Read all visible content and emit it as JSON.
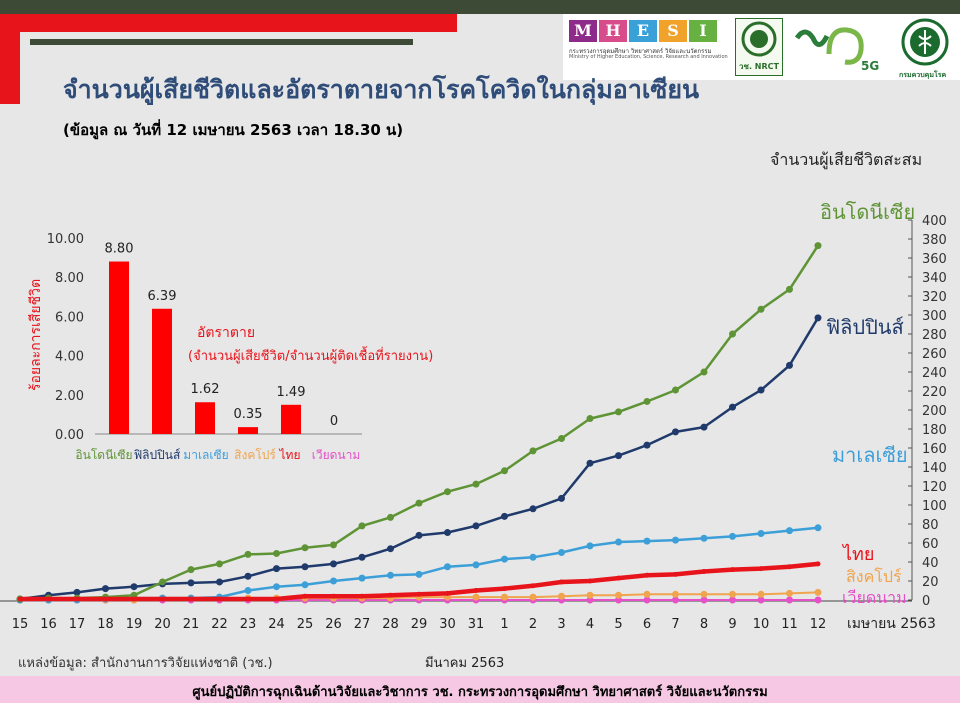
{
  "header": {
    "title": "จำนวนผู้เสียชีวิตและอัตราตายจากโรคโควิดในกลุ่มอาเซียน",
    "subtitle": "(ข้อมูล ณ วันที่ 12 เมษายน 2563 เวลา 18.30 น)",
    "logos": {
      "mhesi_letters": [
        "M",
        "H",
        "E",
        "S",
        "I"
      ],
      "mhesi_colors": [
        "#8e2a8a",
        "#d94c8c",
        "#3aa0d8",
        "#f0a22a",
        "#67b042"
      ],
      "mhesi_th": "กระทรวงการอุดมศึกษา วิทยาศาสตร์ วิจัยและนวัตกรรม",
      "mhesi_en": "Ministry of Higher Education, Science, Research and Innovation",
      "nrct_label": "วช. NRCT",
      "v5g_mark": "5G",
      "moph_label": "กรมควบคุมโรค"
    }
  },
  "source_text": "แหล่งข้อมูล: สำนักงานการวิจัยแห่งชาติ (วช.)",
  "month_label": "มีนาคม 2563",
  "footer_text": "ศูนย์ปฏิบัติการฉุกเฉินด้านวิจัยและวิชาการ   วช.   กระทรวงการอุดมศึกษา วิทยาศาสตร์ วิจัยและนวัตกรรม",
  "chart_data": [
    {
      "type": "line",
      "ylabel": "จำนวนผู้เสียชีวิตสะสม",
      "ylim": [
        0,
        400
      ],
      "yticks": [
        0,
        20,
        40,
        60,
        80,
        100,
        120,
        140,
        160,
        180,
        200,
        220,
        240,
        260,
        280,
        300,
        320,
        340,
        360,
        380,
        400
      ],
      "y_axis_side": "right",
      "x": [
        "15",
        "16",
        "17",
        "18",
        "19",
        "20",
        "21",
        "22",
        "23",
        "24",
        "25",
        "26",
        "27",
        "28",
        "29",
        "30",
        "31",
        "1",
        "2",
        "3",
        "4",
        "5",
        "6",
        "7",
        "8",
        "9",
        "10",
        "11",
        "12"
      ],
      "x_month_end": "เมษายน 2563",
      "series": [
        {
          "name": "อินโดนีเซีย",
          "color": "#5e9436",
          "values": [
            1,
            2,
            2,
            3,
            5,
            19,
            32,
            38,
            48,
            49,
            55,
            58,
            78,
            87,
            102,
            114,
            122,
            136,
            157,
            170,
            191,
            198,
            209,
            221,
            240,
            280,
            306,
            327,
            373
          ]
        },
        {
          "name": "ฟิลิปปินส์",
          "color": "#1f3a6b",
          "values": [
            1,
            5,
            8,
            12,
            14,
            17,
            18,
            19,
            25,
            33,
            35,
            38,
            45,
            54,
            68,
            71,
            78,
            88,
            96,
            107,
            144,
            152,
            163,
            177,
            182,
            203,
            221,
            247,
            297
          ]
        },
        {
          "name": "มาเลเซีย",
          "color": "#3d9fd8",
          "values": [
            0,
            0,
            0,
            1,
            2,
            2,
            2,
            3,
            10,
            14,
            16,
            20,
            23,
            26,
            27,
            35,
            37,
            43,
            45,
            50,
            57,
            61,
            62,
            63,
            65,
            67,
            70,
            73,
            76
          ]
        },
        {
          "name": "ไทย",
          "color": "#e8141b",
          "values": [
            1,
            1,
            1,
            1,
            1,
            1,
            1,
            1,
            1,
            1,
            4,
            4,
            4,
            5,
            6,
            7,
            10,
            12,
            15,
            19,
            20,
            23,
            26,
            27,
            30,
            32,
            33,
            35,
            38
          ]
        },
        {
          "name": "สิงคโปร์",
          "color": "#f0a44d",
          "values": [
            0,
            0,
            0,
            0,
            0,
            2,
            2,
            2,
            2,
            2,
            2,
            2,
            2,
            2,
            3,
            3,
            3,
            3,
            3,
            4,
            5,
            5,
            6,
            6,
            6,
            6,
            6,
            7,
            8
          ]
        },
        {
          "name": "เวียดนาม",
          "color": "#e650c8",
          "values": [
            0,
            0,
            0,
            0,
            0,
            0,
            0,
            0,
            0,
            0,
            0,
            0,
            0,
            0,
            0,
            0,
            0,
            0,
            0,
            0,
            0,
            0,
            0,
            0,
            0,
            0,
            0,
            0,
            0
          ]
        }
      ]
    },
    {
      "type": "bar",
      "annotation_title": "อัตราตาย",
      "annotation_text": "(จำนวนผู้เสียชีวิต/จำนวนผู้ติดเชื้อที่รายงาน)",
      "ylabel": "ร้อยละการเสียชีวิต",
      "ylim": [
        0,
        10
      ],
      "yticks": [
        "0.00",
        "2.00",
        "4.00",
        "6.00",
        "8.00",
        "10.00"
      ],
      "categories": [
        "อินโดนีเซีย",
        "ฟิลิปปินส์",
        "มาเลเซีย",
        "สิงคโปร์",
        "ไทย",
        "เวียดนาม"
      ],
      "category_colors": [
        "#5e9436",
        "#1f3a6b",
        "#3d9fd8",
        "#f0a44d",
        "#e8141b",
        "#e650c8"
      ],
      "values": [
        8.8,
        6.39,
        1.62,
        0.35,
        1.49,
        0
      ],
      "value_labels": [
        "8.80",
        "6.39",
        "1.62",
        "0.35",
        "1.49",
        "0"
      ],
      "bar_color": "#ff0000"
    }
  ]
}
